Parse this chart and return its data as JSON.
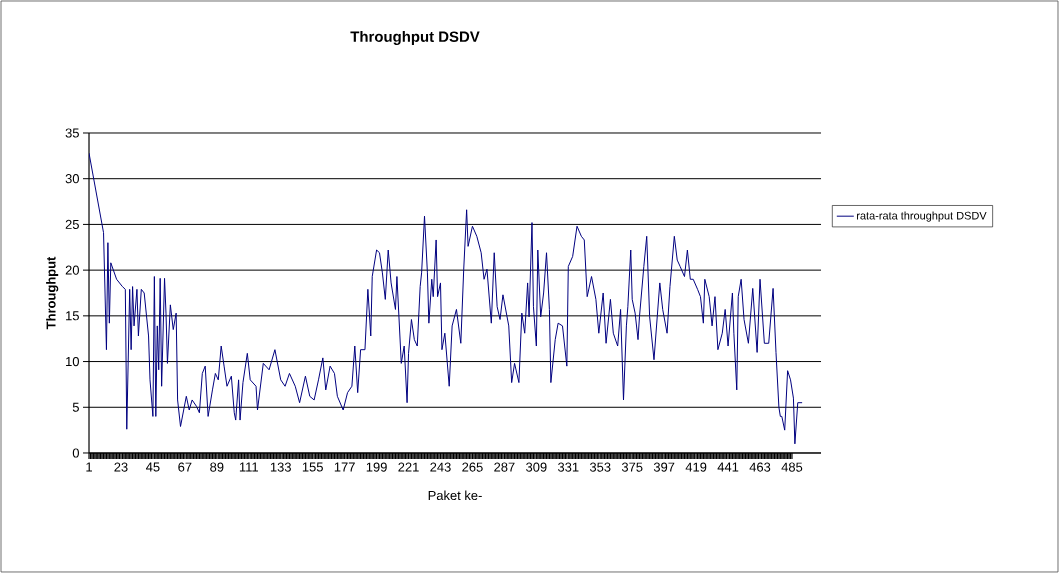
{
  "chart_data": {
    "type": "line",
    "title": "Throughput DSDV",
    "xlabel": "Paket ke-",
    "ylabel": "Throughput",
    "x": [
      1,
      11,
      13,
      14,
      15,
      16,
      20,
      24,
      26,
      27,
      29,
      30,
      31,
      32,
      34,
      35,
      37,
      39,
      42,
      43,
      45,
      46,
      47,
      48,
      49,
      50,
      51,
      53,
      54,
      55,
      57,
      59,
      61,
      62,
      64,
      68,
      70,
      72,
      75,
      77,
      79,
      81,
      83,
      86,
      88,
      90,
      92,
      94,
      96,
      99,
      101,
      102,
      104,
      105,
      107,
      110,
      112,
      116,
      117,
      121,
      125,
      129,
      133,
      136,
      139,
      143,
      146,
      150,
      153,
      156,
      159,
      162,
      164,
      167,
      170,
      172,
      176,
      179,
      182,
      184,
      186,
      188,
      191,
      193,
      195,
      196,
      199,
      201,
      203,
      205,
      207,
      209,
      212,
      213,
      216,
      218,
      220,
      221,
      223,
      225,
      227,
      229,
      230,
      232,
      234,
      235,
      237,
      238,
      240,
      241,
      243,
      244,
      246,
      249,
      251,
      254,
      257,
      259,
      261,
      262,
      265,
      268,
      271,
      273,
      275,
      278,
      280,
      282,
      284,
      286,
      290,
      292,
      294,
      297,
      299,
      301,
      303,
      304,
      306,
      307,
      309,
      310,
      312,
      314,
      316,
      318,
      319,
      322,
      324,
      327,
      330,
      331,
      334,
      337,
      340,
      342,
      344,
      347,
      350,
      352,
      355,
      357,
      360,
      362,
      365,
      367,
      369,
      371,
      372,
      374,
      375,
      377,
      379,
      380,
      383,
      385,
      387,
      390,
      394,
      396,
      399,
      401,
      404,
      406,
      408,
      411,
      413,
      415,
      417,
      420,
      422,
      424,
      425,
      428,
      430,
      432,
      434,
      437,
      439,
      441,
      444,
      445,
      447,
      448,
      450,
      452,
      455,
      458,
      461,
      463,
      466,
      469,
      472,
      474,
      476,
      477,
      478,
      480,
      482,
      484,
      486,
      487,
      489,
      492
    ],
    "series": [
      {
        "name": "rata-rata throughput DSDV",
        "color": "#000080",
        "values": [
          32.8,
          24.1,
          11.3,
          23,
          14.2,
          20.8,
          19,
          18.2,
          17.9,
          2.6,
          17.9,
          11.3,
          18.2,
          13.9,
          17.9,
          12.8,
          17.9,
          17.5,
          12.8,
          8,
          4,
          19.3,
          4,
          13.9,
          9.1,
          19.1,
          7.3,
          19.1,
          15.3,
          9.8,
          16.2,
          13.5,
          15.3,
          5.8,
          2.9,
          6.2,
          4.7,
          5.8,
          5.1,
          4.4,
          8.7,
          9.5,
          4,
          6.9,
          8.7,
          8,
          11.7,
          9.5,
          7.3,
          8.4,
          4.4,
          3.6,
          8,
          3.6,
          7.7,
          10.9,
          8,
          7.3,
          4.7,
          9.8,
          9.1,
          11.3,
          8,
          7.3,
          8.7,
          7.3,
          5.5,
          8.4,
          6.2,
          5.8,
          8,
          10.4,
          6.9,
          9.5,
          8.7,
          6.2,
          4.7,
          6.6,
          7.3,
          11.7,
          6.6,
          11.3,
          11.3,
          17.9,
          12.8,
          19.3,
          22.2,
          21.9,
          19.7,
          16.8,
          22.2,
          18.6,
          15.7,
          19.3,
          9.8,
          11.7,
          5.5,
          10.9,
          14.6,
          12.4,
          11.7,
          18.2,
          19.7,
          25.9,
          19.7,
          14.2,
          19,
          17.1,
          23.3,
          17.1,
          18.6,
          11.3,
          13.1,
          7.3,
          13.9,
          15.7,
          12,
          20.1,
          26.6,
          22.6,
          24.8,
          23.7,
          21.9,
          19,
          20.1,
          14.2,
          21.9,
          16,
          14.6,
          17.3,
          13.9,
          7.7,
          9.8,
          7.7,
          15.3,
          13.1,
          18.6,
          14.9,
          25.2,
          16,
          11.7,
          22.2,
          14.9,
          17.5,
          21.9,
          15.7,
          7.7,
          12.4,
          14.2,
          13.9,
          9.5,
          20.4,
          21.5,
          24.8,
          23.7,
          23.3,
          17.1,
          19.3,
          16.8,
          13.1,
          17.5,
          12,
          16.8,
          13.1,
          11.7,
          15.7,
          5.8,
          13.9,
          16,
          22.2,
          16.8,
          15.3,
          12.4,
          14.9,
          20.4,
          23.7,
          14.9,
          10.2,
          18.6,
          15.7,
          13.1,
          18.2,
          23.7,
          21.1,
          20.4,
          19.3,
          22.2,
          19,
          19,
          17.9,
          17.1,
          14.2,
          19,
          17.1,
          13.9,
          17.1,
          11.3,
          13.1,
          15.7,
          11.7,
          17.5,
          13.1,
          6.9,
          17.1,
          19,
          14.6,
          12,
          18,
          11,
          19,
          12,
          12,
          18,
          11,
          5,
          4,
          4,
          2.5,
          9,
          8,
          6,
          1,
          5.5,
          5.5
        ]
      }
    ],
    "xlim": [
      1,
      505
    ],
    "ylim": [
      0,
      35
    ],
    "xticks": [
      1,
      23,
      45,
      67,
      89,
      111,
      133,
      155,
      177,
      199,
      221,
      243,
      265,
      287,
      309,
      331,
      353,
      375,
      397,
      419,
      441,
      463,
      485
    ],
    "yticks": [
      0,
      5,
      10,
      15,
      20,
      25,
      30,
      35
    ],
    "grid": "y",
    "legend": "right",
    "line_style": "solid",
    "marker": "none"
  }
}
